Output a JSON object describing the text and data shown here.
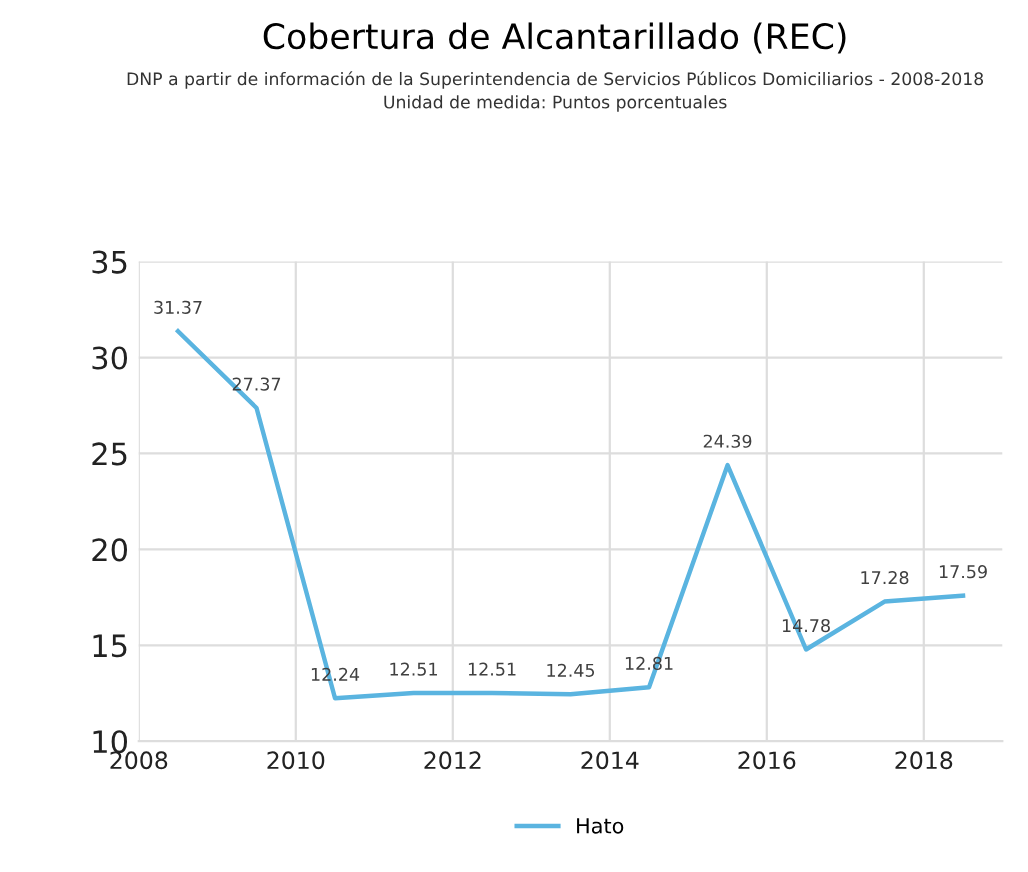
{
  "chart_data": {
    "type": "line",
    "title": "Cobertura de Alcantarillado (REC)",
    "subtitle": "DNP a partir de información de la Superintendencia de Servicios Públicos Domiciliarios - 2008-2018\nUnidad de medida: Puntos porcentuales",
    "x": [
      2008.5,
      2009.5,
      2010.5,
      2011.5,
      2012.5,
      2013.5,
      2014.5,
      2015.5,
      2016.5,
      2017.5,
      2018.5
    ],
    "series": [
      {
        "name": "Hato",
        "color": "#5ab4e0",
        "values": [
          31.37,
          27.37,
          12.24,
          12.51,
          12.51,
          12.45,
          12.81,
          24.39,
          14.78,
          17.28,
          17.59
        ]
      }
    ],
    "xlim": [
      2008,
      2019
    ],
    "xticks": [
      2008,
      2010,
      2012,
      2014,
      2016,
      2018
    ],
    "ylim": [
      10,
      35
    ],
    "yticks": [
      10,
      15,
      20,
      25,
      30,
      35
    ],
    "grid": true,
    "legend": "bottom",
    "marker": "none",
    "line_style": "solid",
    "data_labels": true
  }
}
